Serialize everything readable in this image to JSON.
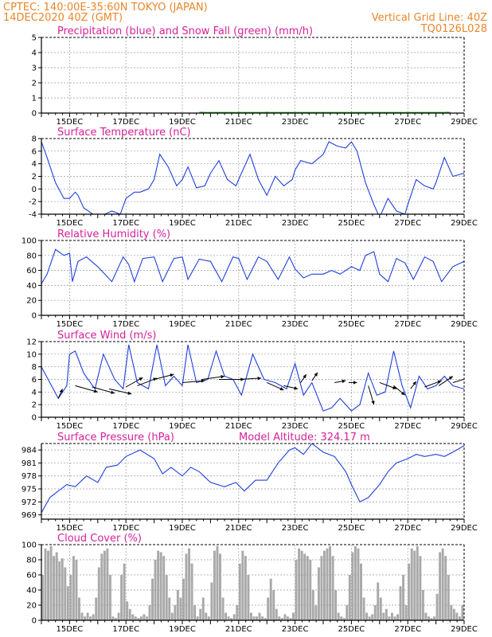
{
  "header": {
    "line1_left": "CPTEC:   140:00E-35:60N   TOKYO (JAPAN)",
    "line2_left": "14DEC2020 40Z (GMT)",
    "line2_right": "Vertical Grid Line: 40Z",
    "line3_right": "TQ0126L028"
  },
  "colors": {
    "header": "#e8862a",
    "title": "#d6209a",
    "line": "#1f3fdc",
    "snow": "#22aa22",
    "bar": "#a9a9a9",
    "arrow": "#000000"
  },
  "x_ticks": [
    "15DEC",
    "17DEC",
    "19DEC",
    "21DEC",
    "23DEC",
    "25DEC",
    "27DEC",
    "29DEC"
  ],
  "chart_data": [
    {
      "id": "precip",
      "type": "line",
      "title": "Precipitation (blue) and Snow Fall (green) (mm/h)",
      "ylim": [
        0,
        5
      ],
      "yticks": [
        0,
        1,
        2,
        3,
        4,
        5
      ],
      "grid": true,
      "series": [
        {
          "name": "Precipitation",
          "color": "#1f3fdc",
          "x": [
            14.0,
            29.0
          ],
          "y": [
            0,
            0
          ]
        },
        {
          "name": "Snow Fall",
          "color": "#22aa22",
          "x": [
            19.6,
            19.7,
            19.8,
            21.9,
            22.0,
            22.1,
            25.0,
            25.1,
            28.3,
            28.4,
            28.5
          ],
          "y": [
            0.02,
            0.03,
            0.02,
            0.02,
            0.03,
            0.02,
            0.02,
            0.02,
            0.02,
            0.03,
            0.02
          ]
        }
      ]
    },
    {
      "id": "temp",
      "type": "line",
      "title": "Surface Temperature (nC)",
      "ylim": [
        -4,
        8
      ],
      "yticks": [
        -4,
        -2,
        0,
        2,
        4,
        6,
        8
      ],
      "grid": true,
      "series": [
        {
          "name": "Temperature",
          "color": "#1f3fdc",
          "x": [
            14.0,
            14.2,
            14.5,
            14.8,
            15.0,
            15.2,
            15.3,
            15.5,
            16.0,
            16.5,
            16.8,
            17.0,
            17.3,
            17.5,
            17.8,
            18.0,
            18.2,
            18.5,
            18.8,
            19.0,
            19.2,
            19.5,
            19.8,
            20.0,
            20.3,
            20.6,
            20.9,
            21.1,
            21.4,
            21.7,
            22.0,
            22.3,
            22.6,
            22.9,
            23.0,
            23.2,
            23.6,
            24.0,
            24.2,
            24.5,
            24.8,
            25.0,
            25.2,
            25.5,
            25.8,
            26.0,
            26.3,
            26.6,
            26.9,
            27.0,
            27.3,
            27.6,
            27.9,
            28.0,
            28.3,
            28.6,
            29.0
          ],
          "y": [
            7.5,
            5.0,
            1.0,
            -1.5,
            -1.5,
            -0.5,
            -1.0,
            -3.0,
            -4.5,
            -3.5,
            -4.0,
            -1.5,
            -0.5,
            -0.5,
            0.0,
            1.5,
            5.5,
            3.5,
            0.5,
            1.5,
            3.5,
            0.2,
            0.5,
            2.5,
            4.5,
            1.5,
            0.5,
            2.5,
            5.5,
            1.5,
            -1.0,
            2.0,
            0.5,
            1.5,
            3.0,
            4.5,
            4.0,
            5.5,
            7.5,
            6.8,
            6.5,
            7.5,
            6.0,
            1.0,
            -2.5,
            -4.5,
            -1.5,
            -3.5,
            -4.0,
            -2.5,
            1.5,
            0.5,
            0.0,
            1.0,
            5.0,
            2.0,
            2.5
          ]
        }
      ]
    },
    {
      "id": "rh",
      "type": "line",
      "title": "Relative Humidity (%)",
      "ylim": [
        0,
        100
      ],
      "yticks": [
        0,
        20,
        40,
        60,
        80,
        100
      ],
      "grid": true,
      "series": [
        {
          "name": "Relative Humidity",
          "color": "#1f3fdc",
          "x": [
            14.0,
            14.2,
            14.5,
            14.8,
            15.0,
            15.1,
            15.3,
            15.6,
            16.0,
            16.5,
            16.9,
            17.1,
            17.3,
            17.6,
            18.0,
            18.3,
            18.7,
            19.0,
            19.2,
            19.6,
            20.0,
            20.4,
            20.8,
            21.0,
            21.3,
            21.7,
            22.0,
            22.4,
            22.8,
            23.0,
            23.3,
            23.6,
            24.0,
            24.3,
            24.6,
            25.0,
            25.3,
            25.5,
            25.8,
            26.0,
            26.3,
            26.6,
            26.9,
            27.2,
            27.6,
            27.9,
            28.2,
            28.6,
            29.0
          ],
          "y": [
            42,
            55,
            88,
            80,
            83,
            45,
            72,
            78,
            65,
            45,
            78,
            68,
            45,
            76,
            78,
            45,
            76,
            78,
            48,
            75,
            72,
            45,
            78,
            76,
            48,
            78,
            72,
            48,
            78,
            62,
            50,
            55,
            55,
            60,
            55,
            65,
            60,
            80,
            85,
            55,
            45,
            76,
            70,
            48,
            78,
            72,
            45,
            65,
            72
          ]
        }
      ]
    },
    {
      "id": "wind",
      "type": "line",
      "title": "Surface Wind (m/s)",
      "ylim": [
        0,
        12
      ],
      "yticks": [
        0,
        2,
        4,
        6,
        8,
        10,
        12
      ],
      "grid": true,
      "series": [
        {
          "name": "Wind Speed",
          "color": "#1f3fdc",
          "x": [
            14.0,
            14.3,
            14.6,
            14.9,
            15.0,
            15.2,
            15.5,
            15.9,
            16.2,
            16.6,
            16.9,
            17.1,
            17.4,
            17.8,
            18.1,
            18.4,
            18.7,
            19.0,
            19.2,
            19.5,
            19.9,
            20.2,
            20.5,
            20.8,
            21.1,
            21.5,
            21.9,
            22.3,
            22.7,
            23.0,
            23.3,
            23.6,
            24.0,
            24.3,
            24.6,
            25.0,
            25.3,
            25.6,
            25.9,
            26.2,
            26.5,
            26.8,
            27.1,
            27.4,
            27.7,
            28.0,
            28.3,
            28.6,
            29.0
          ],
          "y": [
            8.0,
            5.5,
            3.0,
            5.0,
            10.0,
            10.5,
            7.0,
            4.5,
            10.0,
            6.0,
            4.5,
            11.5,
            5.5,
            4.5,
            11.5,
            5.0,
            6.5,
            5.0,
            11.5,
            5.5,
            6.0,
            10.5,
            6.5,
            6.0,
            3.5,
            10.0,
            6.0,
            5.5,
            4.5,
            8.5,
            3.5,
            5.5,
            1.0,
            1.5,
            3.0,
            1.0,
            2.0,
            7.0,
            3.5,
            4.0,
            10.5,
            5.0,
            1.5,
            6.5,
            4.5,
            5.0,
            6.5,
            5.0,
            4.5
          ]
        }
      ],
      "arrows": [
        {
          "x": 14.6,
          "y": 3.0,
          "dx": 0.15,
          "dy": 1.5
        },
        {
          "x": 15.2,
          "y": 5.0,
          "dx": 0.8,
          "dy": -1.0
        },
        {
          "x": 15.8,
          "y": 4.8,
          "dx": 0.8,
          "dy": -1.0
        },
        {
          "x": 16.4,
          "y": 4.5,
          "dx": 0.8,
          "dy": -0.8
        },
        {
          "x": 17.0,
          "y": 4.8,
          "dx": 0.6,
          "dy": 1.5
        },
        {
          "x": 17.4,
          "y": 5.0,
          "dx": 0.7,
          "dy": 1.2
        },
        {
          "x": 18.0,
          "y": 6.0,
          "dx": 0.7,
          "dy": 0.8
        },
        {
          "x": 19.0,
          "y": 5.5,
          "dx": 0.8,
          "dy": 0.3
        },
        {
          "x": 19.7,
          "y": 6.0,
          "dx": 0.8,
          "dy": 0.5
        },
        {
          "x": 20.3,
          "y": 6.0,
          "dx": 0.9,
          "dy": 0.0
        },
        {
          "x": 21.0,
          "y": 6.0,
          "dx": 0.8,
          "dy": 0.2
        },
        {
          "x": 22.0,
          "y": 5.5,
          "dx": 0.6,
          "dy": -1.2
        },
        {
          "x": 22.6,
          "y": 5.0,
          "dx": 0.5,
          "dy": -0.5
        },
        {
          "x": 23.2,
          "y": 5.5,
          "dx": 0.2,
          "dy": 1.3
        },
        {
          "x": 23.6,
          "y": 5.8,
          "dx": 0.2,
          "dy": 1.3
        },
        {
          "x": 24.4,
          "y": 5.5,
          "dx": 0.4,
          "dy": 0.3
        },
        {
          "x": 24.9,
          "y": 5.5,
          "dx": 0.3,
          "dy": 0.0
        },
        {
          "x": 25.6,
          "y": 5.0,
          "dx": 0.2,
          "dy": -3.0
        },
        {
          "x": 26.0,
          "y": 5.5,
          "dx": 0.6,
          "dy": -1.0
        },
        {
          "x": 26.5,
          "y": 5.0,
          "dx": 0.4,
          "dy": -1.5
        },
        {
          "x": 27.1,
          "y": 4.5,
          "dx": 0.2,
          "dy": 1.2
        },
        {
          "x": 27.6,
          "y": 4.8,
          "dx": 0.6,
          "dy": 1.0
        },
        {
          "x": 28.1,
          "y": 5.0,
          "dx": 0.5,
          "dy": 1.5
        },
        {
          "x": 28.6,
          "y": 5.5,
          "dx": 0.6,
          "dy": 0.8
        }
      ]
    },
    {
      "id": "pressure",
      "type": "line",
      "title": "Surface Pressure (hPa)",
      "annotation": "Model Altitude: 324.17 m",
      "ylim": [
        968,
        985.5
      ],
      "yticks": [
        969,
        972,
        975,
        978,
        981,
        984
      ],
      "grid": true,
      "series": [
        {
          "name": "Surface Pressure",
          "color": "#1f3fdc",
          "x": [
            14.0,
            14.3,
            14.6,
            14.9,
            15.2,
            15.6,
            16.0,
            16.3,
            16.7,
            17.0,
            17.5,
            18.0,
            18.3,
            18.6,
            19.0,
            19.3,
            19.6,
            20.0,
            20.5,
            20.9,
            21.2,
            21.6,
            22.0,
            22.4,
            22.8,
            23.0,
            23.3,
            23.6,
            24.0,
            24.4,
            24.8,
            25.0,
            25.3,
            25.6,
            26.0,
            26.3,
            26.6,
            27.0,
            27.3,
            27.6,
            28.0,
            28.3,
            28.6,
            29.0
          ],
          "y": [
            969.5,
            973.0,
            974.5,
            976.0,
            975.5,
            978.0,
            976.5,
            980.0,
            980.5,
            982.5,
            984.0,
            982.0,
            978.5,
            980.0,
            978.0,
            980.0,
            979.0,
            976.5,
            975.5,
            976.5,
            974.5,
            977.0,
            977.0,
            981.0,
            984.0,
            984.5,
            983.0,
            985.5,
            983.5,
            982.5,
            979.0,
            976.0,
            972.0,
            973.0,
            976.0,
            979.0,
            981.0,
            982.0,
            983.0,
            982.5,
            983.0,
            982.5,
            983.5,
            985.0
          ]
        }
      ]
    },
    {
      "id": "cloud",
      "type": "bar",
      "title": "Cloud Cover (%)",
      "ylim": [
        0,
        100
      ],
      "yticks": [
        0,
        20,
        40,
        60,
        80,
        100
      ],
      "grid": true,
      "series": [
        {
          "name": "Cloud Cover",
          "color": "#a9a9a9",
          "x": [
            14.0,
            14.1,
            14.2,
            14.3,
            14.4,
            14.5,
            14.6,
            14.7,
            14.8,
            14.9,
            15.0,
            15.1,
            15.2,
            15.3,
            15.4,
            15.5,
            15.6,
            15.7,
            15.8,
            15.9,
            16.0,
            16.1,
            16.2,
            16.3,
            16.4,
            16.5,
            16.6,
            16.7,
            16.8,
            16.9,
            17.0,
            17.1,
            17.2,
            17.3,
            17.4,
            17.5,
            17.6,
            17.7,
            17.8,
            17.9,
            18.0,
            18.1,
            18.2,
            18.3,
            18.4,
            18.5,
            18.6,
            18.7,
            18.8,
            18.9,
            19.0,
            19.1,
            19.2,
            19.3,
            19.4,
            19.5,
            19.6,
            19.7,
            19.8,
            19.9,
            20.0,
            20.1,
            20.2,
            20.3,
            20.4,
            20.5,
            20.6,
            20.7,
            20.8,
            20.9,
            21.0,
            21.1,
            21.2,
            21.3,
            21.4,
            21.5,
            21.6,
            21.7,
            21.8,
            21.9,
            22.0,
            22.1,
            22.2,
            22.3,
            22.4,
            22.5,
            22.6,
            22.7,
            22.8,
            22.9,
            23.0,
            23.1,
            23.2,
            23.3,
            23.4,
            23.5,
            23.6,
            23.7,
            23.8,
            23.9,
            24.0,
            24.1,
            24.2,
            24.3,
            24.4,
            24.5,
            24.6,
            24.7,
            24.8,
            24.9,
            25.0,
            25.1,
            25.2,
            25.3,
            25.4,
            25.5,
            25.6,
            25.7,
            25.8,
            25.9,
            26.0,
            26.1,
            26.2,
            26.3,
            26.4,
            26.5,
            26.6,
            26.7,
            26.8,
            26.9,
            27.0,
            27.1,
            27.2,
            27.3,
            27.4,
            27.5,
            27.6,
            27.7,
            27.8,
            27.9,
            28.0,
            28.1,
            28.2,
            28.3,
            28.4,
            28.5,
            28.6,
            28.7,
            28.8,
            28.9
          ],
          "values": [
            60,
            95,
            92,
            98,
            85,
            90,
            78,
            82,
            70,
            45,
            60,
            85,
            80,
            30,
            10,
            5,
            10,
            5,
            8,
            30,
            70,
            88,
            92,
            95,
            60,
            5,
            3,
            10,
            60,
            75,
            25,
            15,
            8,
            5,
            3,
            5,
            8,
            5,
            20,
            55,
            80,
            92,
            90,
            85,
            60,
            30,
            10,
            20,
            40,
            30,
            55,
            88,
            95,
            75,
            20,
            5,
            15,
            30,
            10,
            5,
            50,
            92,
            98,
            88,
            30,
            10,
            5,
            3,
            8,
            20,
            75,
            92,
            85,
            60,
            10,
            5,
            5,
            10,
            5,
            3,
            30,
            55,
            40,
            15,
            5,
            3,
            8,
            5,
            3,
            10,
            80,
            95,
            92,
            88,
            85,
            80,
            40,
            20,
            70,
            85,
            92,
            95,
            98,
            85,
            40,
            10,
            5,
            3,
            20,
            60,
            90,
            98,
            95,
            75,
            30,
            10,
            5,
            8,
            20,
            50,
            30,
            10,
            15,
            5,
            10,
            5,
            8,
            45,
            60,
            20,
            75,
            95,
            92,
            98,
            85,
            40,
            10,
            5,
            3,
            5,
            35,
            90,
            95,
            85,
            60,
            20,
            15,
            10,
            5,
            20
          ]
        }
      ]
    }
  ]
}
